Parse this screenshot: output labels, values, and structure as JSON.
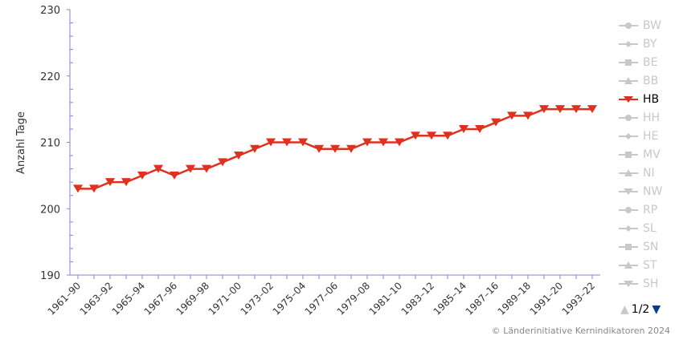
{
  "chart_data": {
    "type": "line",
    "ylabel": "Anzahl Tage",
    "ylim": [
      190,
      230
    ],
    "yticks": [
      190,
      200,
      210,
      220,
      230
    ],
    "categories": [
      "1961–90",
      "1962–91",
      "1963–92",
      "1964–93",
      "1965–94",
      "1966–95",
      "1967–96",
      "1968–97",
      "1969–98",
      "1970–99",
      "1971–00",
      "1972–01",
      "1973–02",
      "1974–03",
      "1975–04",
      "1976–05",
      "1977–06",
      "1978–07",
      "1979–08",
      "1980–09",
      "1981–10",
      "1982–11",
      "1983–12",
      "1984–13",
      "1985–14",
      "1986–15",
      "1987–16",
      "1988–17",
      "1989–18",
      "1990–19",
      "1991–20",
      "1992–21",
      "1993–22"
    ],
    "series": [
      {
        "name": "HB",
        "color": "#e0301e",
        "marker": "triangle-down",
        "values": [
          203,
          203,
          204,
          204,
          205,
          206,
          205,
          206,
          206,
          207,
          208,
          209,
          210,
          210,
          210,
          209,
          209,
          209,
          210,
          210,
          210,
          211,
          211,
          211,
          212,
          212,
          213,
          214,
          214,
          215,
          215,
          215,
          215
        ]
      }
    ],
    "grid": false,
    "legend_position": "right"
  },
  "legend": {
    "items": [
      {
        "label": "BW",
        "marker": "circle",
        "active": false
      },
      {
        "label": "BY",
        "marker": "diamond",
        "active": false
      },
      {
        "label": "BE",
        "marker": "square",
        "active": false
      },
      {
        "label": "BB",
        "marker": "triangle",
        "active": false
      },
      {
        "label": "HB",
        "marker": "triangle-down",
        "active": true
      },
      {
        "label": "HH",
        "marker": "circle",
        "active": false
      },
      {
        "label": "HE",
        "marker": "diamond",
        "active": false
      },
      {
        "label": "MV",
        "marker": "square",
        "active": false
      },
      {
        "label": "NI",
        "marker": "triangle",
        "active": false
      },
      {
        "label": "NW",
        "marker": "triangle-down",
        "active": false
      },
      {
        "label": "RP",
        "marker": "circle",
        "active": false
      },
      {
        "label": "SL",
        "marker": "diamond",
        "active": false
      },
      {
        "label": "SN",
        "marker": "square",
        "active": false
      },
      {
        "label": "ST",
        "marker": "triangle",
        "active": false
      },
      {
        "label": "SH",
        "marker": "triangle-down",
        "active": false
      }
    ],
    "page": "1/2"
  },
  "credit": "© Länderinitiative Kernindikatoren 2024",
  "colors": {
    "axis": "#8080e0",
    "inactive": "#c8c8c8",
    "pager_active": "#0a3a8c"
  }
}
